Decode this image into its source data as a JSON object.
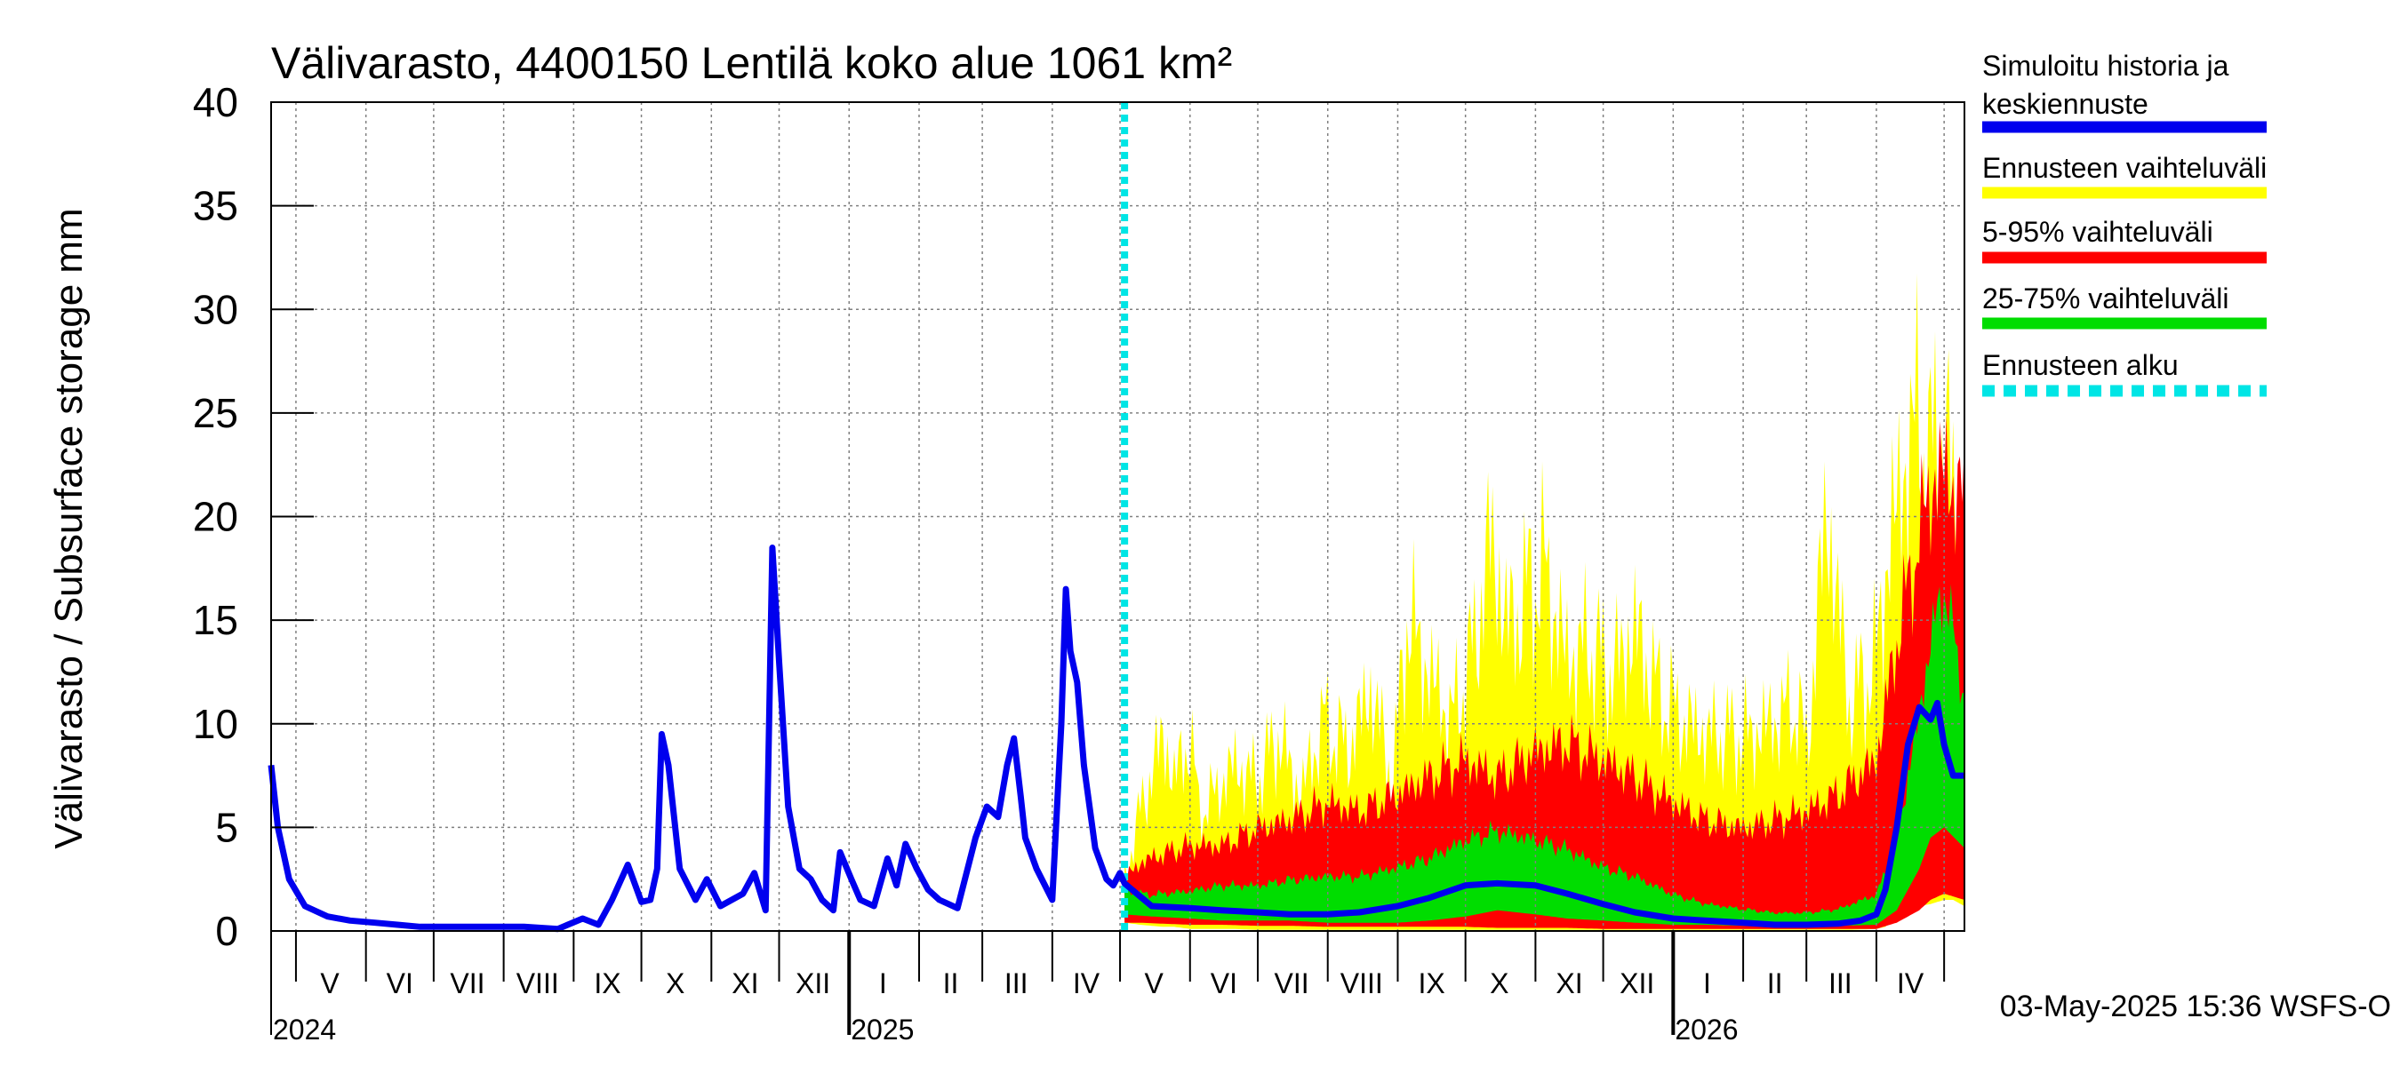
{
  "chart_data": {
    "type": "area",
    "title": "Välivarasto, 4400150 Lentilä koko alue 1061 km²",
    "ylabel": "Välivarasto / Subsurface storage  mm",
    "ylim": [
      0,
      40
    ],
    "yticks": [
      0,
      5,
      10,
      15,
      20,
      25,
      30,
      35,
      40
    ],
    "x_range": [
      "2024-04-20",
      "2026-05-10"
    ],
    "forecast_start": "2025-05-03",
    "month_ticks": [
      "2024-05-01",
      "2024-06-01",
      "2024-07-01",
      "2024-08-01",
      "2024-09-01",
      "2024-10-01",
      "2024-11-01",
      "2024-12-01",
      "2025-01-01",
      "2025-02-01",
      "2025-03-01",
      "2025-04-01",
      "2025-05-01",
      "2025-06-01",
      "2025-07-01",
      "2025-08-01",
      "2025-09-01",
      "2025-10-01",
      "2025-11-01",
      "2025-12-01",
      "2026-01-01",
      "2026-02-01",
      "2026-03-01",
      "2026-04-01",
      "2026-05-01"
    ],
    "month_labels": [
      {
        "date": "2024-05-16",
        "label": "V"
      },
      {
        "date": "2024-06-16",
        "label": "VI"
      },
      {
        "date": "2024-07-16",
        "label": "VII"
      },
      {
        "date": "2024-08-16",
        "label": "VIII"
      },
      {
        "date": "2024-09-16",
        "label": "IX"
      },
      {
        "date": "2024-10-16",
        "label": "X"
      },
      {
        "date": "2024-11-16",
        "label": "XI"
      },
      {
        "date": "2024-12-16",
        "label": "XII"
      },
      {
        "date": "2025-01-16",
        "label": "I"
      },
      {
        "date": "2025-02-15",
        "label": "II"
      },
      {
        "date": "2025-03-16",
        "label": "III"
      },
      {
        "date": "2025-04-16",
        "label": "IV"
      },
      {
        "date": "2025-05-16",
        "label": "V"
      },
      {
        "date": "2025-06-16",
        "label": "VI"
      },
      {
        "date": "2025-07-16",
        "label": "VII"
      },
      {
        "date": "2025-08-16",
        "label": "VIII"
      },
      {
        "date": "2025-09-16",
        "label": "IX"
      },
      {
        "date": "2025-10-16",
        "label": "X"
      },
      {
        "date": "2025-11-16",
        "label": "XI"
      },
      {
        "date": "2025-12-16",
        "label": "XII"
      },
      {
        "date": "2026-01-16",
        "label": "I"
      },
      {
        "date": "2026-02-15",
        "label": "II"
      },
      {
        "date": "2026-03-16",
        "label": "III"
      },
      {
        "date": "2026-04-16",
        "label": "IV"
      }
    ],
    "year_labels": [
      {
        "date": "2024-04-20",
        "label": "2024"
      },
      {
        "date": "2025-01-01",
        "label": "2025"
      },
      {
        "date": "2026-01-01",
        "label": "2026"
      }
    ],
    "series": [
      {
        "name": "Ennusteen vaihteluväli",
        "color": "#ffff00",
        "kind": "band",
        "x": [
          "2025-05-03",
          "2025-05-10",
          "2025-05-20",
          "2025-05-25",
          "2025-06-01",
          "2025-06-05",
          "2025-06-12",
          "2025-06-20",
          "2025-07-01",
          "2025-07-10",
          "2025-07-20",
          "2025-07-30",
          "2025-08-10",
          "2025-08-20",
          "2025-08-30",
          "2025-09-05",
          "2025-09-15",
          "2025-09-25",
          "2025-10-05",
          "2025-10-12",
          "2025-10-20",
          "2025-10-30",
          "2025-11-05",
          "2025-11-15",
          "2025-11-25",
          "2025-12-05",
          "2025-12-15",
          "2025-12-25",
          "2026-01-05",
          "2026-01-15",
          "2026-01-25",
          "2026-02-05",
          "2026-02-15",
          "2026-02-25",
          "2026-03-01",
          "2026-03-10",
          "2026-03-20",
          "2026-04-01",
          "2026-04-05",
          "2026-04-10",
          "2026-04-15",
          "2026-04-20",
          "2026-04-25",
          "2026-05-01",
          "2026-05-05",
          "2026-05-10"
        ],
        "high": [
          3.5,
          8,
          13,
          10,
          13,
          8,
          9,
          11,
          10,
          13,
          9,
          14,
          12,
          16,
          10,
          21,
          17,
          14,
          19,
          26,
          20,
          23,
          24,
          18,
          19,
          17,
          20,
          16,
          14,
          13,
          13,
          13,
          14,
          15,
          12,
          28,
          15,
          18,
          24,
          28,
          32,
          34,
          31,
          33,
          29,
          23
        ],
        "low": [
          0.4,
          0.3,
          0.2,
          0.2,
          0.1,
          0.1,
          0.1,
          0.1,
          0.05,
          0.05,
          0.05,
          0.05,
          0.05,
          0.05,
          0.05,
          0.05,
          0.05,
          0.05,
          0.05,
          0.05,
          0.05,
          0.05,
          0.05,
          0.05,
          0.05,
          0.05,
          0.05,
          0.05,
          0.05,
          0.05,
          0.05,
          0.05,
          0.05,
          0.05,
          0.05,
          0.05,
          0.05,
          0.1,
          0.2,
          0.8,
          1.0,
          1.2,
          1.3,
          1.5,
          1.5,
          1.2
        ]
      },
      {
        "name": "5-95% vaihteluväli",
        "color": "#ff0000",
        "kind": "band",
        "x": [
          "2025-05-03",
          "2025-05-10",
          "2025-05-20",
          "2025-06-01",
          "2025-06-15",
          "2025-07-01",
          "2025-07-15",
          "2025-08-01",
          "2025-08-15",
          "2025-09-01",
          "2025-09-15",
          "2025-10-01",
          "2025-10-15",
          "2025-11-01",
          "2025-11-15",
          "2025-12-01",
          "2025-12-15",
          "2026-01-01",
          "2026-01-15",
          "2026-02-01",
          "2026-02-15",
          "2026-03-01",
          "2026-03-15",
          "2026-04-01",
          "2026-04-10",
          "2026-04-20",
          "2026-04-25",
          "2026-05-01",
          "2026-05-10"
        ],
        "high": [
          3,
          4,
          4.5,
          5,
          5,
          6,
          6.5,
          7.5,
          7,
          8,
          9,
          10,
          9,
          10.5,
          11,
          10,
          9,
          7.5,
          6.5,
          6,
          6.5,
          7,
          8,
          10,
          17,
          23,
          26,
          27,
          25
        ],
        "low": [
          0.4,
          0.4,
          0.35,
          0.3,
          0.3,
          0.25,
          0.25,
          0.2,
          0.2,
          0.2,
          0.2,
          0.2,
          0.15,
          0.15,
          0.15,
          0.1,
          0.1,
          0.1,
          0.1,
          0.1,
          0.1,
          0.1,
          0.1,
          0.1,
          0.4,
          1.0,
          1.5,
          1.8,
          1.5
        ]
      },
      {
        "name": "25-75% vaihteluväli",
        "color": "#00dd00",
        "kind": "band",
        "x": [
          "2025-05-03",
          "2025-05-15",
          "2025-06-01",
          "2025-06-15",
          "2025-07-01",
          "2025-07-15",
          "2025-08-01",
          "2025-08-15",
          "2025-09-01",
          "2025-09-15",
          "2025-10-01",
          "2025-10-15",
          "2025-11-01",
          "2025-11-15",
          "2025-12-01",
          "2025-12-15",
          "2026-01-01",
          "2026-01-15",
          "2026-02-01",
          "2026-02-15",
          "2026-03-01",
          "2026-03-15",
          "2026-04-01",
          "2026-04-10",
          "2026-04-20",
          "2026-04-25",
          "2026-05-01",
          "2026-05-10"
        ],
        "high": [
          2.2,
          2,
          2.2,
          2.5,
          2.5,
          2.8,
          3,
          3,
          3.5,
          4,
          5,
          5.5,
          5,
          4.5,
          3.5,
          3,
          2,
          1.5,
          1.2,
          1,
          1,
          1.2,
          2,
          5,
          12,
          16,
          19,
          13
        ],
        "low": [
          0.8,
          0.7,
          0.6,
          0.5,
          0.5,
          0.5,
          0.4,
          0.4,
          0.4,
          0.5,
          0.7,
          1,
          0.8,
          0.6,
          0.5,
          0.4,
          0.3,
          0.3,
          0.25,
          0.25,
          0.25,
          0.25,
          0.3,
          1,
          3,
          4.5,
          5,
          4
        ]
      },
      {
        "name": "Simuloitu historia ja keskiennuste",
        "color": "#0000ee",
        "kind": "line",
        "x": [
          "2024-04-20",
          "2024-04-23",
          "2024-04-28",
          "2024-05-05",
          "2024-05-15",
          "2024-05-25",
          "2024-06-05",
          "2024-06-15",
          "2024-06-25",
          "2024-07-10",
          "2024-07-25",
          "2024-08-10",
          "2024-08-25",
          "2024-09-05",
          "2024-09-12",
          "2024-09-18",
          "2024-09-25",
          "2024-10-01",
          "2024-10-05",
          "2024-10-08",
          "2024-10-10",
          "2024-10-13",
          "2024-10-18",
          "2024-10-25",
          "2024-10-30",
          "2024-11-05",
          "2024-11-10",
          "2024-11-15",
          "2024-11-20",
          "2024-11-25",
          "2024-11-28",
          "2024-12-01",
          "2024-12-05",
          "2024-12-10",
          "2024-12-15",
          "2024-12-20",
          "2024-12-25",
          "2024-12-28",
          "2025-01-02",
          "2025-01-06",
          "2025-01-12",
          "2025-01-18",
          "2025-01-22",
          "2025-01-26",
          "2025-01-31",
          "2025-02-05",
          "2025-02-10",
          "2025-02-18",
          "2025-02-26",
          "2025-03-03",
          "2025-03-08",
          "2025-03-12",
          "2025-03-15",
          "2025-03-18",
          "2025-03-20",
          "2025-03-25",
          "2025-04-01",
          "2025-04-05",
          "2025-04-07",
          "2025-04-09",
          "2025-04-12",
          "2025-04-15",
          "2025-04-20",
          "2025-04-25",
          "2025-04-28",
          "2025-05-01",
          "2025-05-03",
          "2025-05-15",
          "2025-06-01",
          "2025-06-15",
          "2025-07-01",
          "2025-07-15",
          "2025-08-01",
          "2025-08-15",
          "2025-09-01",
          "2025-09-15",
          "2025-10-01",
          "2025-10-15",
          "2025-11-01",
          "2025-11-15",
          "2025-12-01",
          "2025-12-15",
          "2026-01-01",
          "2026-01-15",
          "2026-02-01",
          "2026-02-15",
          "2026-03-01",
          "2026-03-15",
          "2026-03-25",
          "2026-04-01",
          "2026-04-05",
          "2026-04-10",
          "2026-04-15",
          "2026-04-20",
          "2026-04-25",
          "2026-04-28",
          "2026-05-01",
          "2026-05-05",
          "2026-05-10"
        ],
        "values": [
          8,
          5,
          2.5,
          1.2,
          0.7,
          0.5,
          0.4,
          0.3,
          0.2,
          0.2,
          0.2,
          0.2,
          0.1,
          0.6,
          0.3,
          1.5,
          3.2,
          1.4,
          1.5,
          3,
          9.5,
          8,
          3,
          1.5,
          2.5,
          1.2,
          1.5,
          1.8,
          2.8,
          1,
          18.5,
          13,
          6,
          3,
          2.5,
          1.5,
          1,
          3.8,
          2.5,
          1.5,
          1.2,
          3.5,
          2.2,
          4.2,
          3,
          2,
          1.5,
          1.1,
          4.5,
          6,
          5.5,
          8,
          9.3,
          6.5,
          4.5,
          3,
          1.5,
          10,
          16.5,
          13.5,
          12,
          8,
          4,
          2.5,
          2.2,
          2.8,
          2.3,
          1.2,
          1.1,
          1.0,
          0.9,
          0.8,
          0.8,
          0.9,
          1.2,
          1.6,
          2.2,
          2.3,
          2.2,
          1.8,
          1.3,
          0.9,
          0.6,
          0.5,
          0.4,
          0.3,
          0.3,
          0.35,
          0.5,
          0.8,
          2,
          5,
          9,
          10.8,
          10.2,
          11,
          9,
          7.5,
          7.5
        ]
      },
      {
        "name": "Ennusteen alku",
        "color": "#00e5e5",
        "kind": "vline",
        "x": [
          "2025-05-03"
        ]
      }
    ]
  },
  "timestamp": "03-May-2025 15:36 WSFS-O"
}
